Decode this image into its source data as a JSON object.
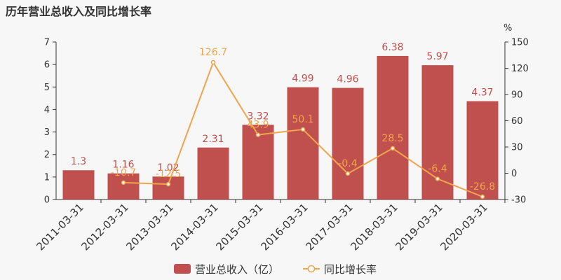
{
  "page": {
    "title": "历年营业总收入及同比增长率"
  },
  "chart_data": {
    "type": "bar",
    "categories": [
      "2011-03-31",
      "2012-03-31",
      "2013-03-31",
      "2014-03-31",
      "2015-03-31",
      "2016-03-31",
      "2017-03-31",
      "2018-03-31",
      "2019-03-31",
      "2020-03-31"
    ],
    "title": "历年营业总收入及同比增长率",
    "series": [
      {
        "name": "营业总收入（亿）",
        "type": "bar",
        "axis": "left",
        "color": "#c0504d",
        "values": [
          1.3,
          1.16,
          1.02,
          2.31,
          3.32,
          4.99,
          4.96,
          6.38,
          5.97,
          4.37
        ],
        "labels": [
          "1.3",
          "1.16",
          "1.02",
          "2.31",
          "3.32",
          "4.99",
          "4.96",
          "6.38",
          "5.97",
          "4.37"
        ]
      },
      {
        "name": "同比增长率",
        "type": "line",
        "axis": "right",
        "color": "#f2a44d",
        "values": [
          null,
          -10.7,
          -12.5,
          126.7,
          43.9,
          50.1,
          -0.4,
          28.5,
          -6.4,
          -26.8
        ],
        "labels": [
          null,
          "-10.7",
          "-12.5",
          "126.7",
          "43.9",
          "50.1",
          "-0.4",
          "28.5",
          "-6.4",
          "-26.8"
        ]
      }
    ],
    "y_left": {
      "min": 0,
      "max": 7,
      "ticks": [
        0,
        1,
        2,
        3,
        4,
        5,
        6,
        7
      ]
    },
    "y_right": {
      "min": -30,
      "max": 150,
      "ticks": [
        -30,
        0,
        30,
        60,
        90,
        120,
        150
      ],
      "unit": "%"
    },
    "grid": false,
    "legend_position": "bottom-center"
  }
}
